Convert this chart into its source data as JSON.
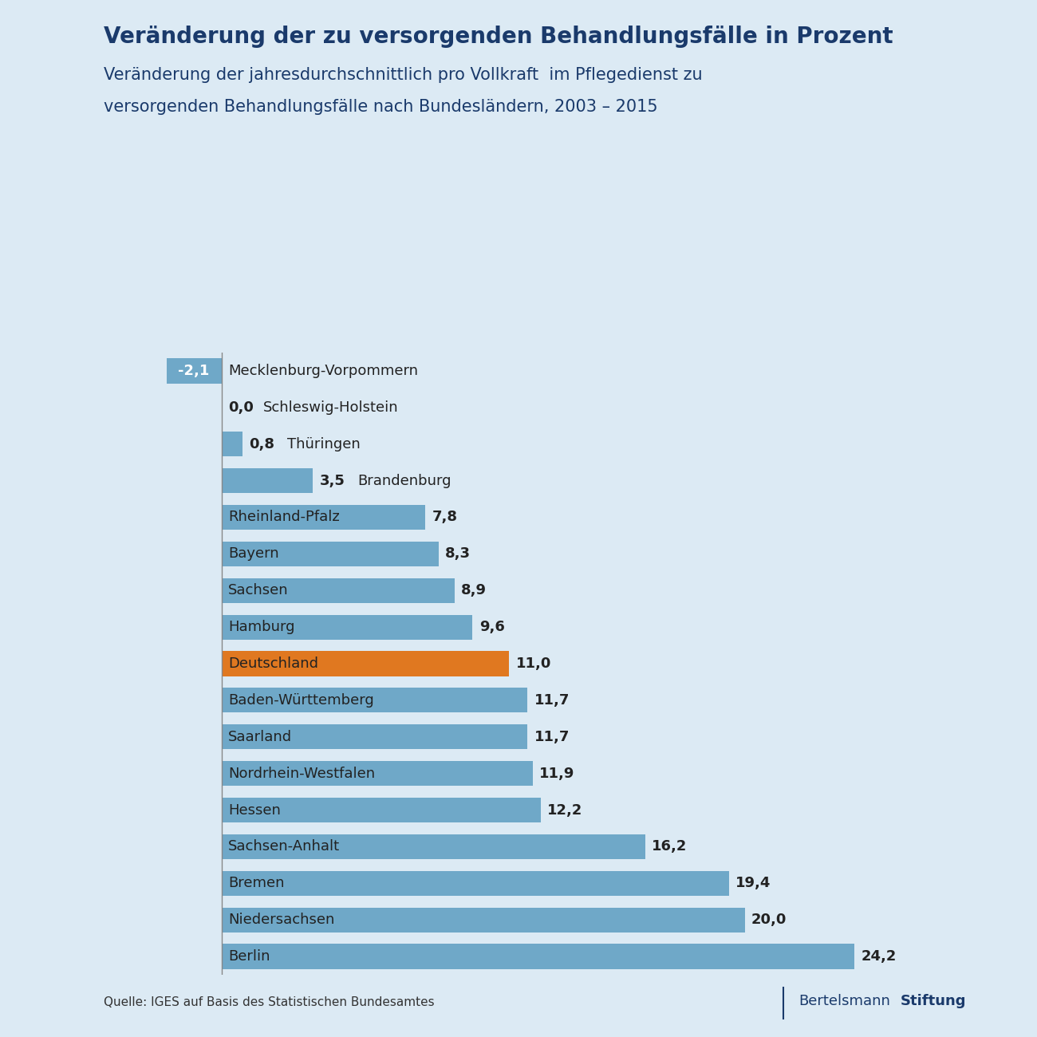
{
  "title": "Veränderung der zu versorgenden Behandlungsfälle in Prozent",
  "subtitle_line1": "Veränderung der jahresdurchschnittlich pro Vollkraft  im Pflegedienst zu",
  "subtitle_line2": "versorgenden Behandlungsfälle nach Bundesländern, 2003 – 2015",
  "categories": [
    "Mecklenburg-Vorpommern",
    "Schleswig-Holstein",
    "Thüringen",
    "Brandenburg",
    "Rheinland-Pfalz",
    "Bayern",
    "Sachsen",
    "Hamburg",
    "Deutschland",
    "Baden-Württemberg",
    "Saarland",
    "Nordrhein-Westfalen",
    "Hessen",
    "Sachsen-Anhalt",
    "Bremen",
    "Niedersachsen",
    "Berlin"
  ],
  "values": [
    -2.1,
    0.0,
    0.8,
    3.5,
    7.8,
    8.3,
    8.9,
    9.6,
    11.0,
    11.7,
    11.7,
    11.9,
    12.2,
    16.2,
    19.4,
    20.0,
    24.2
  ],
  "bar_color_default": "#6fa8c8",
  "bar_color_highlight": "#e07820",
  "highlight_index": 8,
  "background_color": "#dceaf4",
  "title_color": "#1a3a6b",
  "subtitle_color": "#1a3a6b",
  "label_color": "#222222",
  "value_color": "#222222",
  "source_text": "Quelle: IGES auf Basis des Statistischen Bundesamtes",
  "logo_text_normal": "Bertelsmann",
  "logo_text_bold": "Stiftung",
  "logo_color": "#1a3a6b",
  "bar_height": 0.68
}
